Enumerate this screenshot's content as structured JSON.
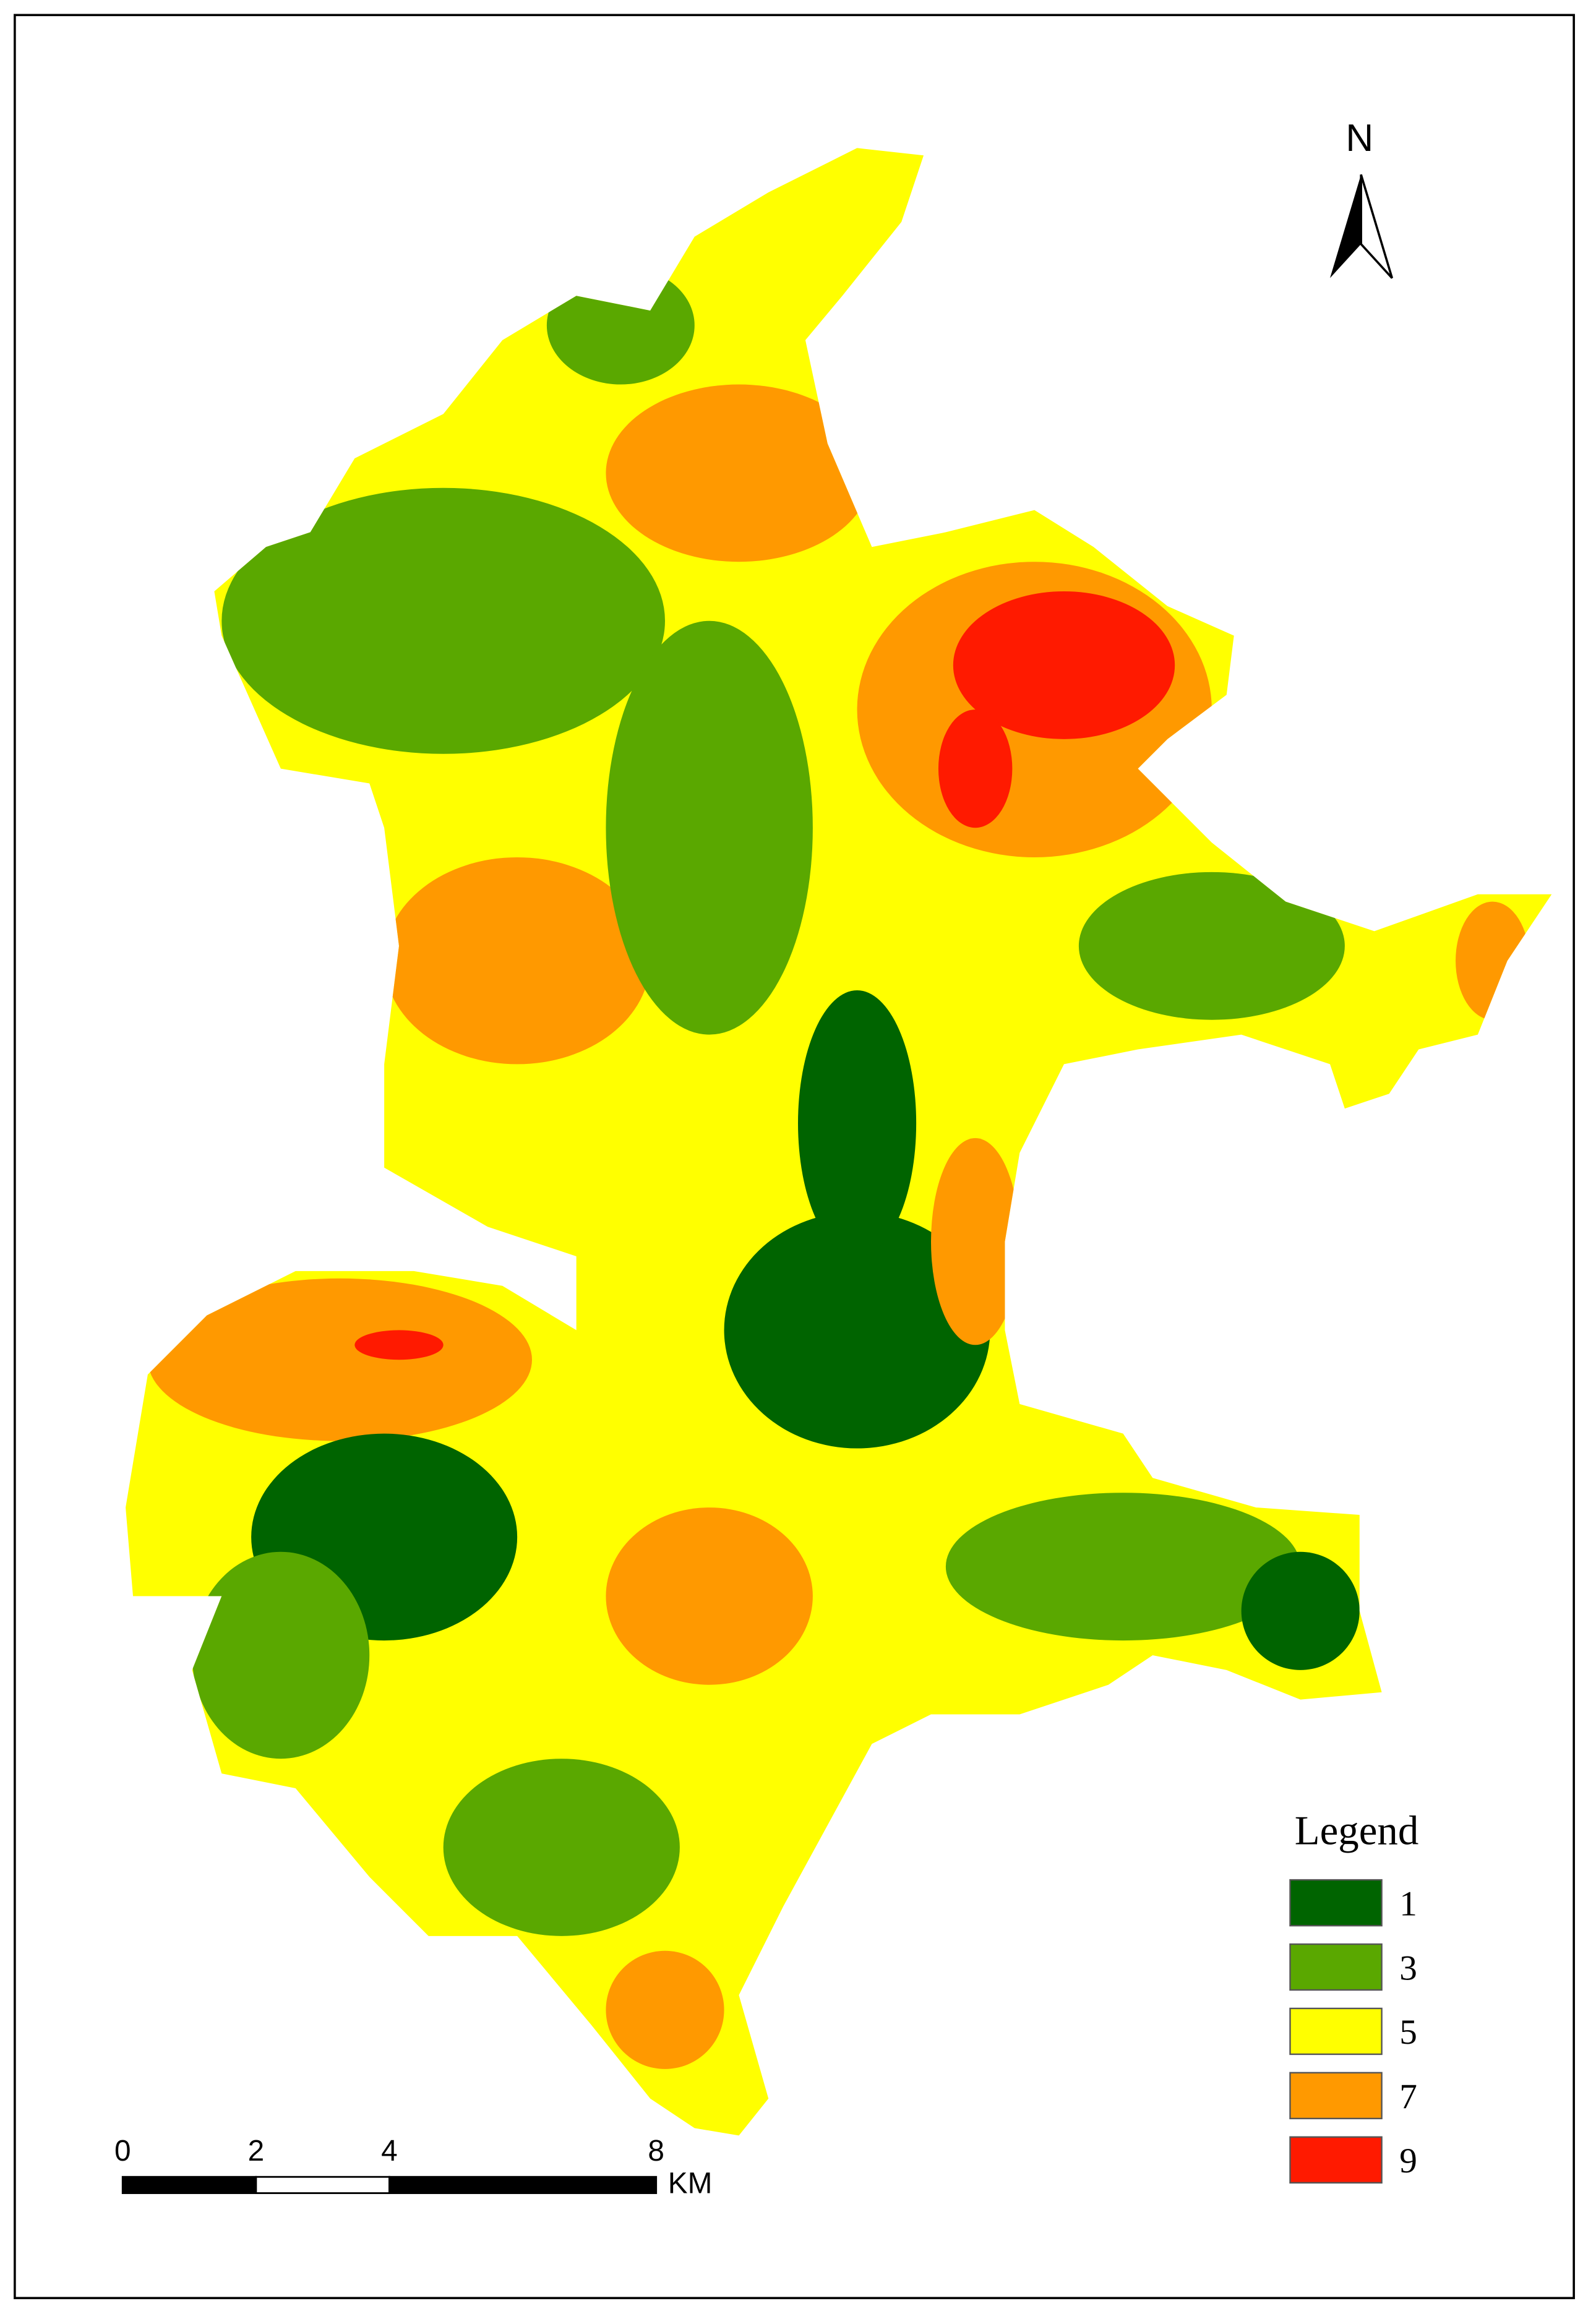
{
  "north_label": "N",
  "legend": {
    "title": "Legend",
    "items": [
      {
        "label": 1,
        "color": "#006400"
      },
      {
        "label": 3,
        "color": "#5aa800"
      },
      {
        "label": 5,
        "color": "#ffff00"
      },
      {
        "label": 7,
        "color": "#ff9900"
      },
      {
        "label": 9,
        "color": "#ff1a00"
      }
    ]
  },
  "scale_bar": {
    "ticks": [
      0,
      2,
      4,
      8
    ],
    "unit": "KM"
  }
}
